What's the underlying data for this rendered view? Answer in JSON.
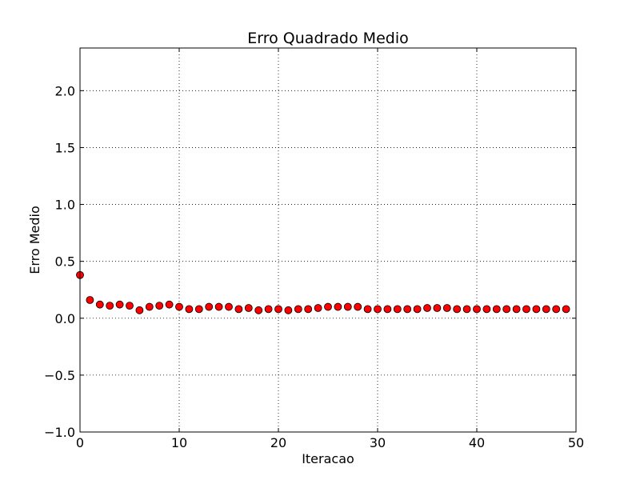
{
  "chart_data": {
    "type": "scatter",
    "title": "Erro Quadrado Medio",
    "xlabel": "Iteracao",
    "ylabel": "Erro Medio",
    "xlim": [
      0,
      50
    ],
    "ylim": [
      -1.0,
      2.375
    ],
    "grid": true,
    "xticks": [
      "0",
      "10",
      "20",
      "30",
      "40",
      "50"
    ],
    "yticks": [
      "−1.0",
      "−0.5",
      "0.0",
      "0.5",
      "1.0",
      "1.5",
      "2.0"
    ],
    "marker_color": "#ff0000",
    "series": [
      {
        "x": [
          0,
          1,
          2,
          3,
          4,
          5,
          6,
          7,
          8,
          9,
          10,
          11,
          12,
          13,
          14,
          15,
          16,
          17,
          18,
          19,
          20,
          21,
          22,
          23,
          24,
          25,
          26,
          27,
          28,
          29,
          30,
          31,
          32,
          33,
          34,
          35,
          36,
          37,
          38,
          39,
          40,
          41,
          42,
          43,
          44,
          45,
          46,
          47,
          48,
          49
        ],
        "y": [
          0.38,
          0.16,
          0.12,
          0.11,
          0.12,
          0.11,
          0.07,
          0.1,
          0.11,
          0.12,
          0.1,
          0.08,
          0.08,
          0.1,
          0.1,
          0.1,
          0.08,
          0.09,
          0.07,
          0.08,
          0.08,
          0.07,
          0.08,
          0.08,
          0.09,
          0.1,
          0.1,
          0.1,
          0.1,
          0.08,
          0.08,
          0.08,
          0.08,
          0.08,
          0.08,
          0.09,
          0.09,
          0.09,
          0.08,
          0.08,
          0.08,
          0.08,
          0.08,
          0.08,
          0.08,
          0.08,
          0.08,
          0.08,
          0.08,
          0.08
        ]
      }
    ]
  }
}
